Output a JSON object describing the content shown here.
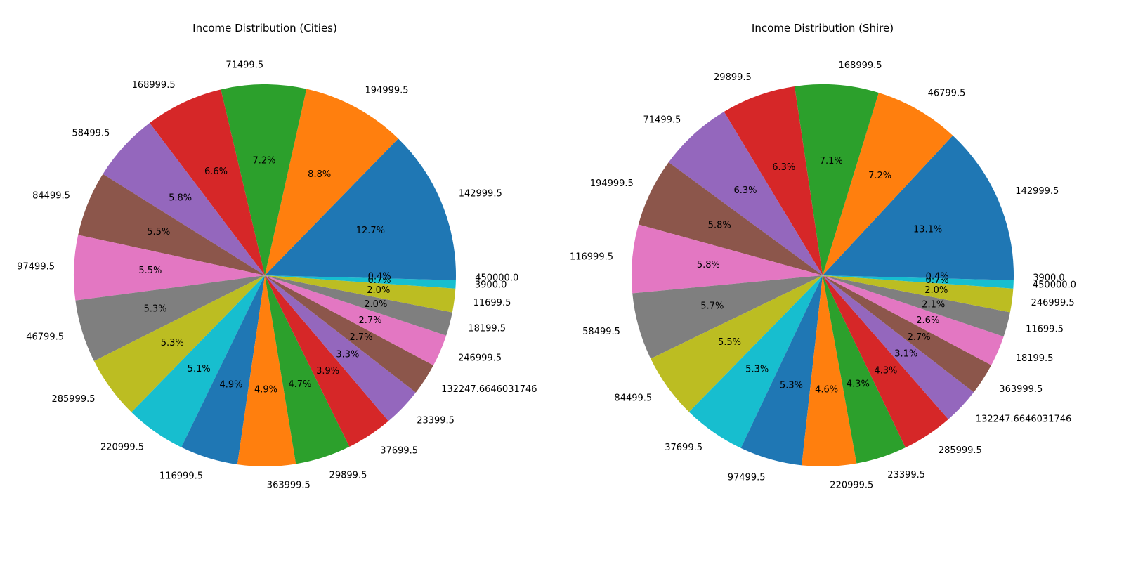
{
  "palette": [
    "#1f77b4",
    "#ff7f0e",
    "#2ca02c",
    "#d62728",
    "#9467bd",
    "#8c564b",
    "#e377c2",
    "#7f7f7f",
    "#bcbd22",
    "#17becf"
  ],
  "chart_data": [
    {
      "type": "pie",
      "title": "Income Distribution (Cities)",
      "start_angle": 0,
      "direction": "counterclockwise",
      "slices": [
        {
          "label": "142999.5",
          "value": 12.7,
          "pct_label": "12.7%"
        },
        {
          "label": "194999.5",
          "value": 8.8,
          "pct_label": "8.8%"
        },
        {
          "label": "71499.5",
          "value": 7.2,
          "pct_label": "7.2%"
        },
        {
          "label": "168999.5",
          "value": 6.6,
          "pct_label": "6.6%"
        },
        {
          "label": "58499.5",
          "value": 5.8,
          "pct_label": "5.8%"
        },
        {
          "label": "84499.5",
          "value": 5.5,
          "pct_label": "5.5%"
        },
        {
          "label": "97499.5",
          "value": 5.5,
          "pct_label": "5.5%"
        },
        {
          "label": "46799.5",
          "value": 5.3,
          "pct_label": "5.3%"
        },
        {
          "label": "285999.5",
          "value": 5.3,
          "pct_label": "5.3%"
        },
        {
          "label": "220999.5",
          "value": 5.1,
          "pct_label": "5.1%"
        },
        {
          "label": "116999.5",
          "value": 4.9,
          "pct_label": "4.9%"
        },
        {
          "label": "363999.5",
          "value": 4.9,
          "pct_label": "4.9%"
        },
        {
          "label": "29899.5",
          "value": 4.7,
          "pct_label": "4.7%"
        },
        {
          "label": "37699.5",
          "value": 3.9,
          "pct_label": "3.9%"
        },
        {
          "label": "23399.5",
          "value": 3.3,
          "pct_label": "3.3%"
        },
        {
          "label": "132247.6646031746",
          "value": 2.7,
          "pct_label": "2.7%"
        },
        {
          "label": "246999.5",
          "value": 2.7,
          "pct_label": "2.7%"
        },
        {
          "label": "18199.5",
          "value": 2.0,
          "pct_label": "2.0%"
        },
        {
          "label": "11699.5",
          "value": 2.0,
          "pct_label": "2.0%"
        },
        {
          "label": "3900.0",
          "value": 0.7,
          "pct_label": "0.7%"
        },
        {
          "label": "450000.0",
          "value": 0.4,
          "pct_label": "0.4%"
        }
      ]
    },
    {
      "type": "pie",
      "title": "Income Distribution (Shire)",
      "start_angle": 0,
      "direction": "counterclockwise",
      "slices": [
        {
          "label": "142999.5",
          "value": 13.1,
          "pct_label": "13.1%"
        },
        {
          "label": "46799.5",
          "value": 7.2,
          "pct_label": "7.2%"
        },
        {
          "label": "168999.5",
          "value": 7.1,
          "pct_label": "7.1%"
        },
        {
          "label": "29899.5",
          "value": 6.3,
          "pct_label": "6.3%"
        },
        {
          "label": "71499.5",
          "value": 6.3,
          "pct_label": "6.3%"
        },
        {
          "label": "194999.5",
          "value": 5.8,
          "pct_label": "5.8%"
        },
        {
          "label": "116999.5",
          "value": 5.8,
          "pct_label": "5.8%"
        },
        {
          "label": "58499.5",
          "value": 5.7,
          "pct_label": "5.7%"
        },
        {
          "label": "84499.5",
          "value": 5.5,
          "pct_label": "5.5%"
        },
        {
          "label": "37699.5",
          "value": 5.3,
          "pct_label": "5.3%"
        },
        {
          "label": "97499.5",
          "value": 5.3,
          "pct_label": "5.3%"
        },
        {
          "label": "220999.5",
          "value": 4.6,
          "pct_label": "4.6%"
        },
        {
          "label": "23399.5",
          "value": 4.3,
          "pct_label": "4.3%"
        },
        {
          "label": "285999.5",
          "value": 4.3,
          "pct_label": "4.3%"
        },
        {
          "label": "132247.6646031746",
          "value": 3.1,
          "pct_label": "3.1%"
        },
        {
          "label": "363999.5",
          "value": 2.7,
          "pct_label": "2.7%"
        },
        {
          "label": "18199.5",
          "value": 2.6,
          "pct_label": "2.6%"
        },
        {
          "label": "11699.5",
          "value": 2.1,
          "pct_label": "2.1%"
        },
        {
          "label": "246999.5",
          "value": 2.0,
          "pct_label": "2.0%"
        },
        {
          "label": "450000.0",
          "value": 0.7,
          "pct_label": "0.7%"
        },
        {
          "label": "3900.0",
          "value": 0.4,
          "pct_label": "0.4%"
        }
      ]
    }
  ]
}
